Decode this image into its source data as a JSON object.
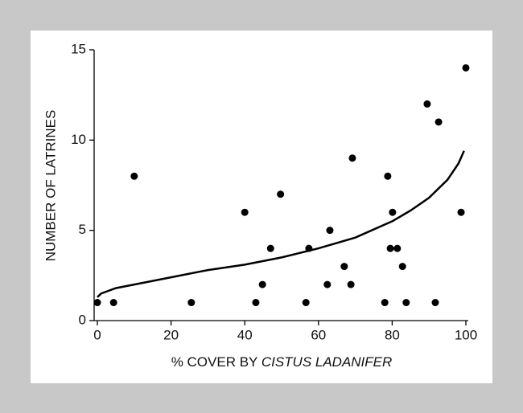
{
  "chart_data": {
    "type": "scatter",
    "ylabel": "NUMBER OF LATRINES",
    "xlabel_parts": [
      "% COVER BY",
      "CISTUS LADANIFER"
    ],
    "xlabel_italic": [
      false,
      true
    ],
    "xlim": [
      0,
      100
    ],
    "xticks": [
      0,
      20,
      40,
      60,
      80,
      100
    ],
    "ylim": [
      0,
      15
    ],
    "yticks": [
      0,
      5,
      10,
      15
    ],
    "color": "#000000",
    "x": [
      0,
      4.4,
      10,
      25.5,
      40,
      43,
      44.8,
      47,
      49.7,
      56.6,
      57.4,
      62.4,
      63.1,
      67,
      68.8,
      69.2,
      78,
      78.8,
      79.5,
      80.1,
      81.4,
      82.8,
      83.8,
      89.5,
      91.7,
      92.6,
      98.7,
      100
    ],
    "values": [
      1,
      1,
      8,
      1,
      6,
      1,
      2,
      4,
      7,
      1,
      4,
      2,
      5,
      3,
      2,
      9,
      1,
      8,
      4,
      6,
      4,
      3,
      1,
      12,
      1,
      11,
      6,
      14
    ],
    "fit": {
      "x": [
        0,
        1,
        5,
        10,
        20,
        30,
        40,
        50,
        60,
        70,
        80,
        85,
        90,
        95,
        98,
        99.5
      ],
      "y": [
        1.3,
        1.5,
        1.8,
        2.0,
        2.4,
        2.8,
        3.1,
        3.5,
        4.0,
        4.6,
        5.5,
        6.1,
        6.8,
        7.8,
        8.7,
        9.4
      ]
    }
  }
}
